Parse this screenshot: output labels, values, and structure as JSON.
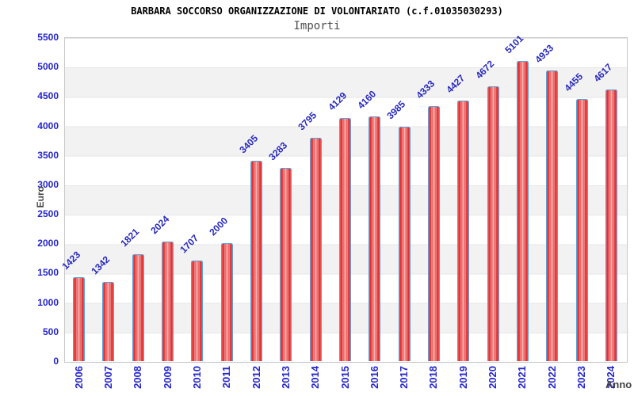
{
  "chart_data": {
    "type": "bar",
    "title": "BARBARA SOCCORSO ORGANIZZAZIONE DI VOLONTARIATO (c.f.01035030293)",
    "subtitle": "Importi",
    "ylabel": "Euro",
    "xlabel": "Anno",
    "categories": [
      "2006",
      "2007",
      "2008",
      "2009",
      "2010",
      "2011",
      "2012",
      "2013",
      "2014",
      "2015",
      "2016",
      "2017",
      "2018",
      "2019",
      "2020",
      "2021",
      "2022",
      "2023",
      "2024"
    ],
    "values": [
      1423,
      1342,
      1821,
      2024,
      1707,
      2000,
      3405,
      3283,
      3795,
      4129,
      4160,
      3985,
      4333,
      4427,
      4672,
      5101,
      4933,
      4455,
      4617
    ],
    "ylim": [
      0,
      5500
    ],
    "ytick_step": 500,
    "yticks": [
      0,
      500,
      1000,
      1500,
      2000,
      2500,
      3000,
      3500,
      4000,
      4500,
      5000,
      5500
    ],
    "grid": "alternating-horizontal-bands",
    "legend": "none",
    "colors": {
      "bar_fill_edge": "#e01717",
      "bar_fill_center": "#f4a2a2",
      "bar_border": "#58a0da",
      "value_label_text": "#2829bb",
      "tick_label_text": "#2526cd",
      "axis_title_text": "#444444",
      "band_gray": "#f2f2f2",
      "plot_border": "#c9c9c9",
      "title_text": "#000000",
      "subtitle_text": "#4d4d4d"
    }
  }
}
